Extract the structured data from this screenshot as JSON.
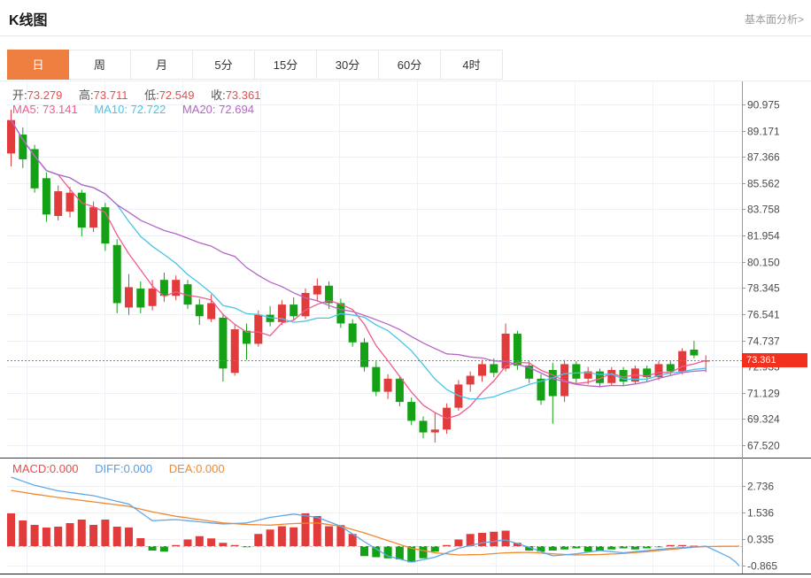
{
  "header": {
    "title": "K线图",
    "analysis_link": "基本面分析>"
  },
  "tabs": {
    "items": [
      {
        "label": "日",
        "active": true
      },
      {
        "label": "周",
        "active": false
      },
      {
        "label": "月",
        "active": false
      },
      {
        "label": "5分",
        "active": false
      },
      {
        "label": "15分",
        "active": false
      },
      {
        "label": "30分",
        "active": false
      },
      {
        "label": "60分",
        "active": false
      },
      {
        "label": "4时",
        "active": false
      }
    ]
  },
  "legend": {
    "ohlc": [
      {
        "label": "开:",
        "value": "73.279"
      },
      {
        "label": "高:",
        "value": "73.711"
      },
      {
        "label": "低:",
        "value": "72.549"
      },
      {
        "label": "收:",
        "value": "73.361"
      }
    ],
    "ma": [
      {
        "label": "MA5:",
        "value": "73.141"
      },
      {
        "label": "MA10:",
        "value": "72.722"
      },
      {
        "label": "MA20:",
        "value": "72.694"
      }
    ],
    "macd": [
      {
        "label": "MACD:",
        "value": "0.000"
      },
      {
        "label": "DIFF:",
        "value": "0.000"
      },
      {
        "label": "DEA:",
        "value": "0.000"
      }
    ]
  },
  "price_marker": {
    "value": "73.361"
  },
  "colors": {
    "up": "#e23b3b",
    "down": "#15a115",
    "ma5": "#f25a8e",
    "ma10": "#49c4e5",
    "ma20": "#b565c6",
    "diff": "#5fa7ea",
    "dea": "#f0882f",
    "price_line": "#f2564a",
    "badge_bg": "#f3301d",
    "tab_active_bg": "#ef7e41"
  },
  "chart_data": {
    "type": "candlestick+macd",
    "main": {
      "y_ticks": [
        "90.975",
        "89.171",
        "87.366",
        "85.562",
        "83.758",
        "81.954",
        "80.150",
        "78.345",
        "76.541",
        "74.737",
        "72.933",
        "71.129",
        "69.324",
        "67.520"
      ],
      "ylim": [
        67.52,
        90.975
      ],
      "price_line": 73.361,
      "ma_periods": [
        5,
        10,
        20
      ],
      "candles": [
        [
          87.6,
          90.6,
          86.7,
          89.9
        ],
        [
          88.9,
          89.4,
          86.6,
          87.2
        ],
        [
          87.9,
          88.2,
          84.9,
          85.2
        ],
        [
          85.9,
          86.3,
          82.9,
          83.4
        ],
        [
          83.3,
          85.4,
          83.0,
          85.0
        ],
        [
          83.6,
          85.3,
          83.2,
          84.9
        ],
        [
          84.9,
          85.1,
          81.9,
          82.5
        ],
        [
          82.5,
          84.3,
          82.2,
          83.9
        ],
        [
          83.9,
          84.2,
          80.9,
          81.4
        ],
        [
          81.3,
          81.7,
          76.6,
          77.3
        ],
        [
          77.0,
          79.3,
          76.5,
          78.4
        ],
        [
          78.3,
          78.8,
          76.6,
          77.0
        ],
        [
          77.1,
          78.9,
          76.8,
          78.3
        ],
        [
          78.9,
          79.4,
          77.4,
          77.8
        ],
        [
          77.8,
          79.2,
          77.5,
          78.9
        ],
        [
          78.6,
          78.9,
          76.9,
          77.2
        ],
        [
          77.2,
          77.6,
          75.8,
          76.4
        ],
        [
          76.2,
          77.9,
          76.0,
          77.3
        ],
        [
          76.3,
          76.6,
          71.9,
          72.8
        ],
        [
          72.5,
          75.8,
          72.3,
          75.5
        ],
        [
          75.4,
          75.9,
          73.4,
          74.5
        ],
        [
          74.5,
          76.8,
          74.3,
          76.5
        ],
        [
          76.5,
          77.1,
          75.7,
          76.0
        ],
        [
          76.0,
          77.5,
          75.8,
          77.2
        ],
        [
          77.2,
          77.7,
          76.1,
          76.4
        ],
        [
          76.4,
          78.3,
          76.2,
          78.0
        ],
        [
          77.9,
          79.0,
          77.4,
          78.5
        ],
        [
          78.5,
          78.8,
          76.9,
          77.3
        ],
        [
          77.3,
          77.6,
          75.6,
          75.9
        ],
        [
          75.9,
          76.2,
          74.3,
          74.6
        ],
        [
          74.6,
          74.9,
          72.6,
          72.9
        ],
        [
          72.9,
          73.3,
          70.9,
          71.2
        ],
        [
          71.2,
          72.4,
          70.7,
          72.1
        ],
        [
          72.1,
          72.3,
          70.2,
          70.5
        ],
        [
          70.5,
          70.8,
          68.9,
          69.2
        ],
        [
          69.2,
          69.5,
          68.0,
          68.4
        ],
        [
          68.4,
          69.8,
          67.7,
          68.6
        ],
        [
          68.6,
          70.4,
          68.3,
          70.1
        ],
        [
          70.1,
          72.0,
          69.9,
          71.7
        ],
        [
          71.7,
          72.6,
          71.2,
          72.3
        ],
        [
          72.3,
          73.4,
          71.9,
          73.1
        ],
        [
          73.1,
          73.5,
          72.2,
          72.5
        ],
        [
          72.8,
          75.9,
          72.6,
          75.2
        ],
        [
          75.2,
          75.4,
          72.7,
          73.0
        ],
        [
          73.0,
          73.3,
          71.8,
          72.1
        ],
        [
          72.1,
          72.4,
          70.3,
          70.6
        ],
        [
          72.7,
          73.2,
          69.0,
          70.9
        ],
        [
          70.9,
          73.4,
          70.5,
          73.1
        ],
        [
          73.1,
          73.3,
          71.8,
          72.1
        ],
        [
          72.1,
          72.9,
          71.7,
          72.6
        ],
        [
          72.6,
          72.8,
          71.5,
          71.8
        ],
        [
          71.8,
          72.9,
          71.6,
          72.7
        ],
        [
          72.7,
          72.9,
          71.6,
          71.9
        ],
        [
          71.9,
          73.0,
          71.7,
          72.8
        ],
        [
          72.8,
          73.0,
          71.9,
          72.2
        ],
        [
          72.2,
          73.3,
          72.0,
          73.1
        ],
        [
          73.1,
          73.3,
          72.3,
          72.6
        ],
        [
          72.6,
          74.2,
          72.4,
          74.0
        ],
        [
          74.1,
          74.7,
          73.5,
          73.7
        ],
        [
          73.279,
          73.711,
          72.549,
          73.361
        ]
      ]
    },
    "macd": {
      "y_ticks": [
        "2.736",
        "1.536",
        "0.335",
        "-0.865"
      ],
      "hist": [
        1.48,
        1.16,
        0.96,
        0.84,
        0.88,
        1.04,
        1.2,
        0.96,
        1.2,
        0.88,
        0.84,
        0.36,
        -0.2,
        -0.25,
        0.05,
        0.3,
        0.45,
        0.35,
        0.15,
        0.05,
        -0.05,
        0.55,
        0.75,
        0.9,
        0.85,
        1.48,
        1.36,
        0.9,
        0.95,
        0.55,
        -0.45,
        -0.5,
        -0.55,
        -0.6,
        -0.73,
        -0.55,
        -0.25,
        0.05,
        0.3,
        0.55,
        0.6,
        0.65,
        0.7,
        0.15,
        -0.2,
        -0.25,
        -0.2,
        -0.15,
        -0.1,
        -0.25,
        -0.2,
        -0.15,
        -0.1,
        -0.15,
        -0.1,
        -0.05,
        0.05,
        0.05,
        0.02,
        0.0
      ],
      "diff_points": [
        [
          1,
          3.12
        ],
        [
          3,
          2.75
        ],
        [
          5,
          2.5
        ],
        [
          8,
          2.28
        ],
        [
          11,
          1.9
        ],
        [
          13,
          1.15
        ],
        [
          15,
          1.2
        ],
        [
          17,
          1.1
        ],
        [
          19,
          1.0
        ],
        [
          21,
          1.05
        ],
        [
          23,
          1.3
        ],
        [
          25,
          1.45
        ],
        [
          27,
          1.3
        ],
        [
          29,
          0.9
        ],
        [
          31,
          0.2
        ],
        [
          33,
          -0.45
        ],
        [
          35,
          -0.72
        ],
        [
          37,
          -0.5
        ],
        [
          39,
          -0.1
        ],
        [
          41,
          0.15
        ],
        [
          43,
          0.28
        ],
        [
          45,
          -0.05
        ],
        [
          47,
          -0.44
        ],
        [
          49,
          -0.35
        ],
        [
          51,
          -0.2
        ],
        [
          53,
          -0.3
        ],
        [
          55,
          -0.2
        ],
        [
          57,
          -0.1
        ],
        [
          59,
          -0.04
        ],
        [
          60,
          0.0
        ],
        [
          62,
          -0.5
        ],
        [
          63,
          -0.9
        ]
      ],
      "dea_points": [
        [
          1,
          2.52
        ],
        [
          3,
          2.35
        ],
        [
          5,
          2.2
        ],
        [
          8,
          2.0
        ],
        [
          11,
          1.8
        ],
        [
          13,
          1.55
        ],
        [
          15,
          1.35
        ],
        [
          17,
          1.2
        ],
        [
          19,
          1.05
        ],
        [
          21,
          0.98
        ],
        [
          23,
          0.95
        ],
        [
          25,
          1.02
        ],
        [
          27,
          1.05
        ],
        [
          29,
          0.9
        ],
        [
          31,
          0.6
        ],
        [
          33,
          0.25
        ],
        [
          35,
          -0.1
        ],
        [
          37,
          -0.3
        ],
        [
          39,
          -0.4
        ],
        [
          41,
          -0.38
        ],
        [
          43,
          -0.3
        ],
        [
          45,
          -0.28
        ],
        [
          47,
          -0.35
        ],
        [
          49,
          -0.4
        ],
        [
          51,
          -0.38
        ],
        [
          53,
          -0.33
        ],
        [
          55,
          -0.25
        ],
        [
          57,
          -0.15
        ],
        [
          59,
          -0.05
        ],
        [
          60,
          -0.02
        ],
        [
          63,
          0.0
        ]
      ]
    }
  }
}
